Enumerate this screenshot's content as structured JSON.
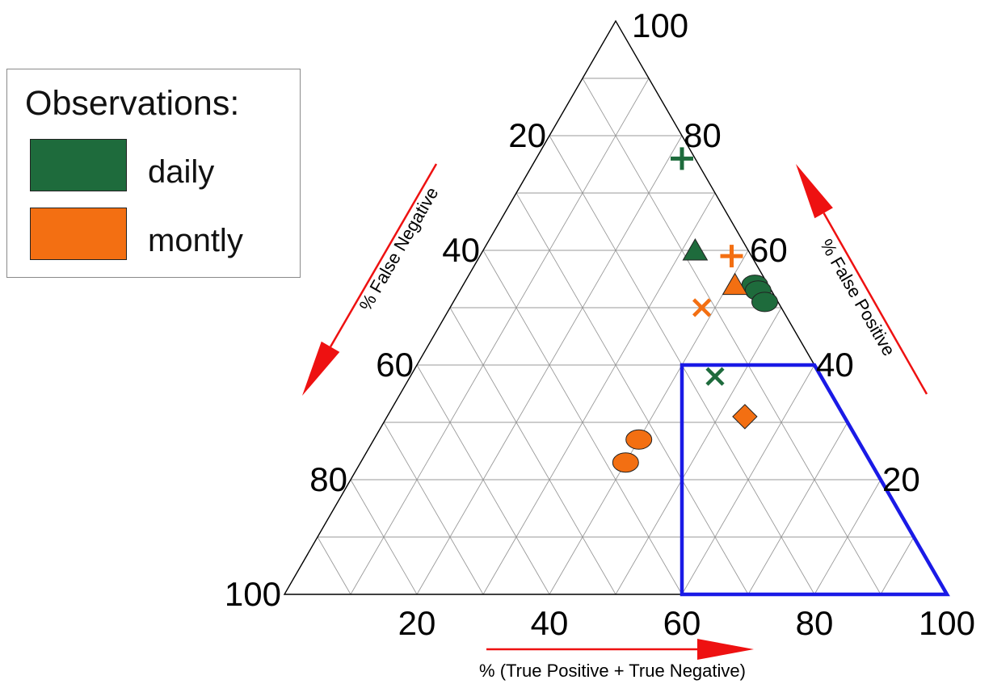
{
  "legend": {
    "title": "Observations:",
    "items": [
      {
        "label": "daily",
        "color": "#1e6b3c"
      },
      {
        "label": "montly",
        "color": "#f36f12"
      }
    ]
  },
  "chart_data": {
    "type": "scatter",
    "subtype": "ternary",
    "axes": {
      "top": {
        "tick_labels": [
          "100"
        ]
      },
      "left": {
        "label": "% False Negative",
        "tick_labels": [
          "20",
          "40",
          "60",
          "80",
          "100"
        ]
      },
      "right": {
        "label": "% False Positive",
        "tick_labels": [
          "20",
          "40",
          "60",
          "80"
        ]
      },
      "bottom": {
        "label": "% (True Positive + True Negative)",
        "tick_labels": [
          "20",
          "40",
          "60",
          "80",
          "100"
        ]
      }
    },
    "grid": true,
    "grid_step": 10,
    "colors": {
      "daily": "#1e6b3c",
      "montly": "#f36f12",
      "region": "#1a1ae6",
      "arrows": "#ee1111"
    },
    "region_outline": [
      {
        "tp_tn": 60,
        "fp": 40,
        "fn": 0
      },
      {
        "tp_tn": 80,
        "fp": 20,
        "fn": 0
      },
      {
        "tp_tn": 100,
        "fp": 0,
        "fn": 0
      },
      {
        "tp_tn": 60,
        "fp": 0,
        "fn": 40
      },
      {
        "tp_tn": 50,
        "fp": 20,
        "fn": 30
      },
      {
        "tp_tn": 40,
        "fp": 40,
        "fn": 20
      }
    ],
    "points": [
      {
        "series": "daily",
        "marker": "plus",
        "fp": 76,
        "tp_tn": 22,
        "fn": 2
      },
      {
        "series": "daily",
        "marker": "triangle",
        "fp": 60,
        "tp_tn": 32,
        "fn": 8
      },
      {
        "series": "daily",
        "marker": "circle",
        "fp": 54,
        "tp_tn": 44,
        "fn": 2
      },
      {
        "series": "daily",
        "marker": "circle",
        "fp": 53,
        "tp_tn": 45,
        "fn": 2
      },
      {
        "series": "daily",
        "marker": "circle",
        "fp": 51,
        "tp_tn": 47,
        "fn": 2
      },
      {
        "series": "daily",
        "marker": "cross",
        "fp": 38,
        "tp_tn": 46,
        "fn": 16
      },
      {
        "series": "montly",
        "marker": "plus",
        "fp": 59,
        "tp_tn": 38,
        "fn": 3
      },
      {
        "series": "montly",
        "marker": "triangle",
        "fp": 54,
        "tp_tn": 41,
        "fn": 5
      },
      {
        "series": "montly",
        "marker": "cross",
        "fp": 50,
        "tp_tn": 38,
        "fn": 12
      },
      {
        "series": "montly",
        "marker": "diamond",
        "fp": 31,
        "tp_tn": 54,
        "fn": 15
      },
      {
        "series": "montly",
        "marker": "circle",
        "fp": 27,
        "tp_tn": 40,
        "fn": 33
      },
      {
        "series": "montly",
        "marker": "circle",
        "fp": 23,
        "tp_tn": 40,
        "fn": 37
      }
    ]
  }
}
